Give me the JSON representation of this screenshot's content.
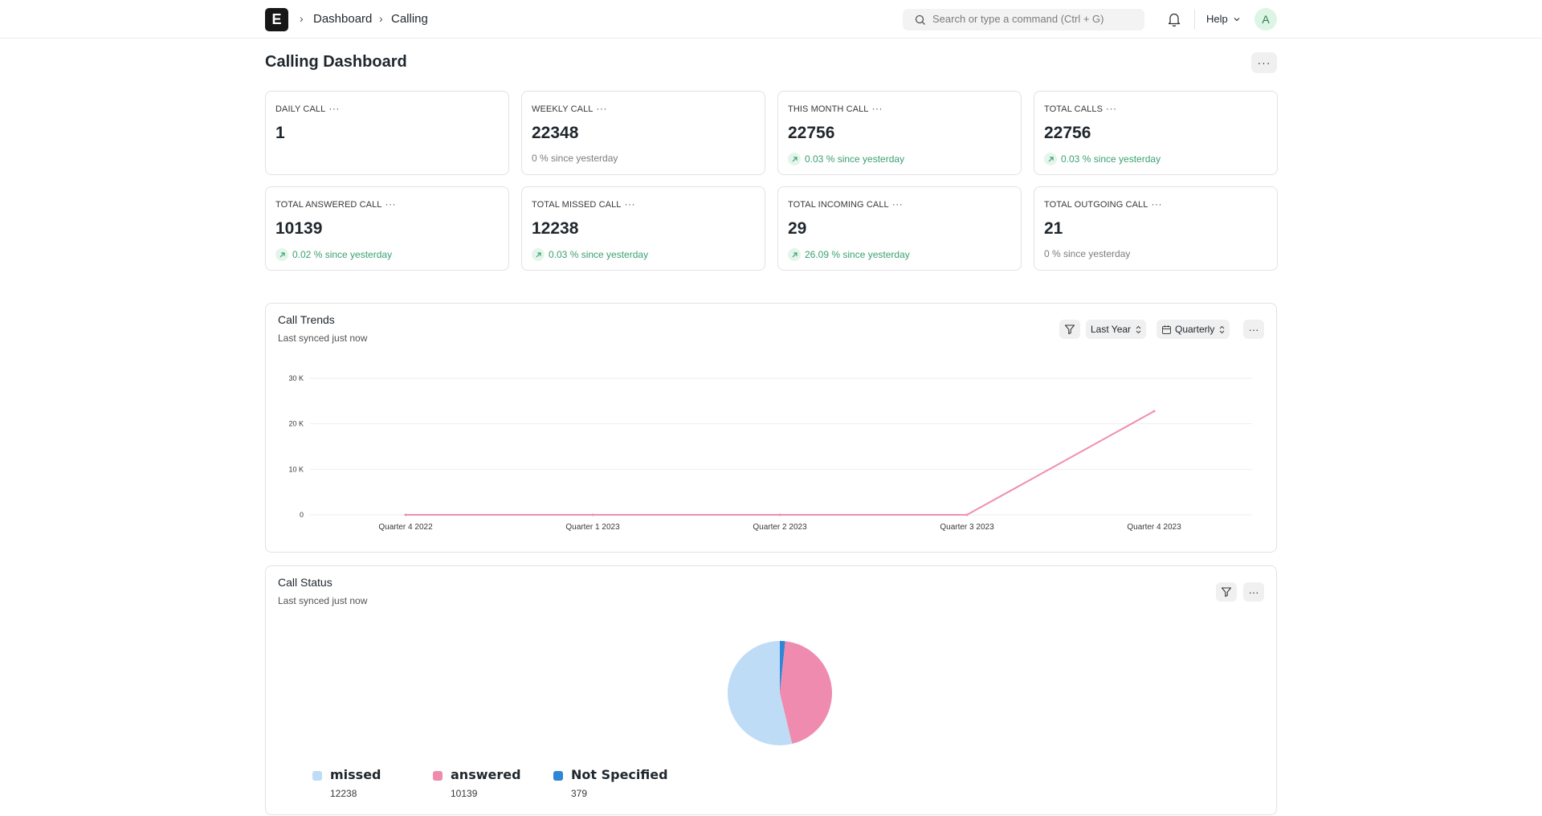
{
  "navbar": {
    "logo": "E",
    "breadcrumbs": [
      "Dashboard",
      "Calling"
    ],
    "search_placeholder": "Search or type a command (Ctrl + G)",
    "help_label": "Help",
    "avatar_initial": "A"
  },
  "page": {
    "title": "Calling Dashboard",
    "menu_label": "···"
  },
  "cards": [
    {
      "label": "DAILY CALL",
      "value": "1",
      "stat": "",
      "trend": "none"
    },
    {
      "label": "WEEKLY CALL",
      "value": "22348",
      "stat": "0 % since yesterday",
      "trend": "flat"
    },
    {
      "label": "THIS MONTH CALL",
      "value": "22756",
      "stat": "0.03 % since yesterday",
      "trend": "up"
    },
    {
      "label": "TOTAL CALLS",
      "value": "22756",
      "stat": "0.03 % since yesterday",
      "trend": "up"
    },
    {
      "label": "TOTAL ANSWERED CALL",
      "value": "10139",
      "stat": "0.02 % since yesterday",
      "trend": "up"
    },
    {
      "label": "TOTAL MISSED CALL",
      "value": "12238",
      "stat": "0.03 % since yesterday",
      "trend": "up"
    },
    {
      "label": "TOTAL INCOMING CALL",
      "value": "29",
      "stat": "26.09 % since yesterday",
      "trend": "up"
    },
    {
      "label": "TOTAL OUTGOING CALL",
      "value": "21",
      "stat": "0 % since yesterday",
      "trend": "flat"
    }
  ],
  "trends": {
    "title": "Call Trends",
    "synced": "Last synced just now",
    "range_label": "Last Year",
    "interval_label": "Quarterly"
  },
  "status": {
    "title": "Call Status",
    "synced": "Last synced just now"
  },
  "colors": {
    "line": "#ef8eaf",
    "missed": "#bfdcf6",
    "answered": "#f08bb0",
    "not_specified": "#2f86d6",
    "positive": "#3aa070"
  },
  "chart_data": [
    {
      "type": "line",
      "title": "Call Trends",
      "categories": [
        "Quarter 4 2022",
        "Quarter 1 2023",
        "Quarter 2 2023",
        "Quarter 3 2023",
        "Quarter 4 2023"
      ],
      "values": [
        0,
        0,
        0,
        0,
        22756
      ],
      "y_ticks": [
        "0",
        "10 K",
        "20 K",
        "30 K"
      ],
      "ylim": [
        0,
        30000
      ],
      "grid": true
    },
    {
      "type": "pie",
      "title": "Call Status",
      "series": [
        {
          "name": "missed",
          "value": 12238,
          "value_label": "12238"
        },
        {
          "name": "answered",
          "value": 10139,
          "value_label": "10139"
        },
        {
          "name": "Not Specified",
          "value": 379,
          "value_label": "379"
        }
      ],
      "legend": "bottom-left"
    }
  ]
}
